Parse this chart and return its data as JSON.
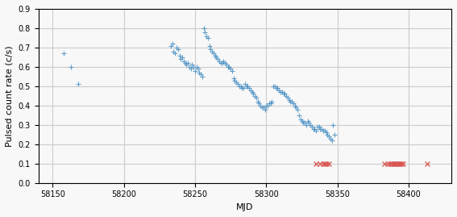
{
  "blue_x": [
    58158,
    58163,
    58168,
    58233,
    58234,
    58235,
    58236,
    58237,
    58238,
    58239,
    58240,
    58241,
    58242,
    58243,
    58244,
    58245,
    58246,
    58247,
    58248,
    58249,
    58250,
    58251,
    58252,
    58253,
    58254,
    58255,
    58256,
    58257,
    58258,
    58259,
    58260,
    58261,
    58262,
    58263,
    58264,
    58265,
    58266,
    58267,
    58268,
    58269,
    58270,
    58271,
    58272,
    58273,
    58274,
    58275,
    58276,
    58277,
    58278,
    58279,
    58280,
    58281,
    58282,
    58283,
    58284,
    58285,
    58286,
    58287,
    58288,
    58289,
    58290,
    58291,
    58292,
    58293,
    58294,
    58295,
    58296,
    58297,
    58298,
    58299,
    58300,
    58301,
    58302,
    58303,
    58304,
    58305,
    58306,
    58307,
    58308,
    58309,
    58310,
    58311,
    58312,
    58313,
    58314,
    58315,
    58316,
    58317,
    58318,
    58319,
    58320,
    58321,
    58322,
    58323,
    58324,
    58325,
    58326,
    58327,
    58328,
    58329,
    58330,
    58331,
    58332,
    58333,
    58334,
    58335,
    58336,
    58337,
    58338,
    58339,
    58340,
    58341,
    58342,
    58343,
    58344,
    58345,
    58346,
    58347,
    58348
  ],
  "blue_y": [
    0.67,
    0.6,
    0.51,
    0.71,
    0.72,
    0.68,
    0.67,
    0.7,
    0.69,
    0.66,
    0.64,
    0.65,
    0.63,
    0.62,
    0.61,
    0.62,
    0.6,
    0.59,
    0.61,
    0.6,
    0.58,
    0.6,
    0.59,
    0.57,
    0.56,
    0.55,
    0.8,
    0.78,
    0.76,
    0.75,
    0.71,
    0.69,
    0.68,
    0.67,
    0.66,
    0.65,
    0.64,
    0.63,
    0.62,
    0.62,
    0.63,
    0.62,
    0.61,
    0.6,
    0.6,
    0.59,
    0.58,
    0.54,
    0.53,
    0.52,
    0.51,
    0.5,
    0.5,
    0.49,
    0.49,
    0.51,
    0.5,
    0.5,
    0.49,
    0.48,
    0.47,
    0.46,
    0.45,
    0.44,
    0.42,
    0.41,
    0.4,
    0.39,
    0.39,
    0.38,
    0.4,
    0.4,
    0.41,
    0.41,
    0.42,
    0.5,
    0.5,
    0.49,
    0.49,
    0.48,
    0.47,
    0.47,
    0.46,
    0.46,
    0.45,
    0.44,
    0.43,
    0.42,
    0.42,
    0.41,
    0.4,
    0.39,
    0.38,
    0.35,
    0.33,
    0.32,
    0.31,
    0.31,
    0.3,
    0.32,
    0.31,
    0.3,
    0.29,
    0.28,
    0.28,
    0.27,
    0.29,
    0.29,
    0.28,
    0.28,
    0.27,
    0.27,
    0.26,
    0.25,
    0.24,
    0.23,
    0.22,
    0.3,
    0.25
  ],
  "red_x": [
    58335,
    58338,
    58340,
    58341,
    58342,
    58344,
    58383,
    58385,
    58387,
    58388,
    58389,
    58390,
    58391,
    58392,
    58393,
    58394,
    58395,
    58396,
    58413
  ],
  "red_y": [
    0.1,
    0.1,
    0.1,
    0.1,
    0.1,
    0.1,
    0.1,
    0.1,
    0.1,
    0.1,
    0.1,
    0.1,
    0.1,
    0.1,
    0.1,
    0.1,
    0.1,
    0.1,
    0.1
  ],
  "xlim": [
    58140,
    58430
  ],
  "ylim": [
    0.0,
    0.9
  ],
  "xlabel": "MJD",
  "ylabel": "Pulsed count rate (c/s)",
  "xticks": [
    58150,
    58200,
    58250,
    58300,
    58350,
    58400
  ],
  "yticks": [
    0.0,
    0.1,
    0.2,
    0.3,
    0.4,
    0.5,
    0.6,
    0.7,
    0.8,
    0.9
  ],
  "blue_color": "#4a90c4",
  "red_color": "#d9534f",
  "grid_color": "#cccccc",
  "bg_color": "#f8f8f8"
}
